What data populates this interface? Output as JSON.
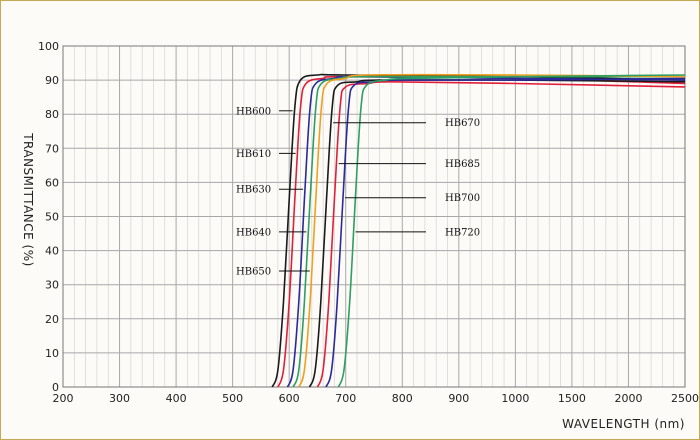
{
  "chart_data": {
    "type": "line",
    "title": "",
    "xlabel": "WAVELENGTH (nm)",
    "ylabel": "TRANSMITTANCE (%)",
    "ylim": [
      0,
      100
    ],
    "x_tick_labels": [
      "200",
      "300",
      "400",
      "500",
      "600",
      "700",
      "800",
      "900",
      "1000",
      "1500",
      "2000",
      "2500"
    ],
    "y_tick_labels": [
      "0",
      "10",
      "20",
      "30",
      "40",
      "50",
      "60",
      "70",
      "80",
      "90",
      "100"
    ],
    "x_scale_note": "non-uniform: 100 nm per division from 200 to 1000, 500 nm per division from 1000 to 2500",
    "grid": true,
    "legend": "labels with leader lines; HB600, HB610, HB630, HB640, HB650 on the left; HB670, HB685, HB700, HB720 on the right",
    "series": [
      {
        "name": "HB600",
        "color": "#1a1a1a",
        "points": [
          [
            570,
            0
          ],
          [
            580,
            5
          ],
          [
            590,
            25
          ],
          [
            600,
            55
          ],
          [
            610,
            82
          ],
          [
            620,
            90
          ],
          [
            650,
            91.5
          ],
          [
            700,
            91.5
          ],
          [
            1000,
            91
          ],
          [
            2500,
            90
          ]
        ]
      },
      {
        "name": "HB610",
        "color": "#e0203a",
        "points": [
          [
            580,
            0
          ],
          [
            590,
            5
          ],
          [
            600,
            25
          ],
          [
            610,
            55
          ],
          [
            620,
            82
          ],
          [
            630,
            89
          ],
          [
            660,
            90.5
          ],
          [
            700,
            91
          ],
          [
            1000,
            90.5
          ],
          [
            2500,
            89
          ]
        ]
      },
      {
        "name": "HB630",
        "color": "#2a2a9a",
        "points": [
          [
            597,
            0
          ],
          [
            607,
            5
          ],
          [
            617,
            25
          ],
          [
            627,
            55
          ],
          [
            637,
            82
          ],
          [
            647,
            89
          ],
          [
            680,
            90.5
          ],
          [
            720,
            91
          ],
          [
            1000,
            90.5
          ],
          [
            2500,
            90
          ]
        ]
      },
      {
        "name": "HB640",
        "color": "#2e9e62",
        "points": [
          [
            607,
            0
          ],
          [
            617,
            5
          ],
          [
            627,
            25
          ],
          [
            637,
            55
          ],
          [
            647,
            82
          ],
          [
            657,
            89
          ],
          [
            690,
            90.5
          ],
          [
            730,
            91
          ],
          [
            1000,
            91
          ],
          [
            2500,
            91
          ]
        ]
      },
      {
        "name": "HB650",
        "color": "#f0a020",
        "points": [
          [
            617,
            0
          ],
          [
            627,
            5
          ],
          [
            637,
            25
          ],
          [
            647,
            55
          ],
          [
            657,
            82
          ],
          [
            667,
            89
          ],
          [
            700,
            90.5
          ],
          [
            740,
            91.5
          ],
          [
            1000,
            91.5
          ],
          [
            2500,
            91
          ]
        ]
      },
      {
        "name": "HB670",
        "color": "#1a1a1a",
        "points": [
          [
            636,
            0
          ],
          [
            646,
            5
          ],
          [
            656,
            25
          ],
          [
            666,
            55
          ],
          [
            676,
            82
          ],
          [
            686,
            88.5
          ],
          [
            720,
            89.5
          ],
          [
            760,
            90
          ],
          [
            1000,
            90
          ],
          [
            2500,
            89.5
          ]
        ]
      },
      {
        "name": "HB685",
        "color": "#e0203a",
        "points": [
          [
            650,
            0
          ],
          [
            660,
            5
          ],
          [
            670,
            25
          ],
          [
            680,
            55
          ],
          [
            690,
            82
          ],
          [
            700,
            88
          ],
          [
            740,
            89
          ],
          [
            780,
            89.5
          ],
          [
            1000,
            89
          ],
          [
            2500,
            88
          ]
        ]
      },
      {
        "name": "HB700",
        "color": "#2a2a9a",
        "points": [
          [
            665,
            0
          ],
          [
            675,
            5
          ],
          [
            685,
            25
          ],
          [
            695,
            55
          ],
          [
            705,
            82
          ],
          [
            715,
            88.5
          ],
          [
            750,
            89.5
          ],
          [
            790,
            90
          ],
          [
            1000,
            90
          ],
          [
            2500,
            90.5
          ]
        ]
      },
      {
        "name": "HB720",
        "color": "#2e9e62",
        "points": [
          [
            687,
            0
          ],
          [
            697,
            5
          ],
          [
            707,
            25
          ],
          [
            717,
            55
          ],
          [
            727,
            82
          ],
          [
            737,
            88.5
          ],
          [
            770,
            90
          ],
          [
            810,
            90.5
          ],
          [
            1000,
            91
          ],
          [
            2500,
            91.5
          ]
        ]
      }
    ],
    "labels_left": [
      {
        "text": "HB600",
        "y": 81,
        "target_series": "HB600"
      },
      {
        "text": "HB610",
        "y": 68.5,
        "target_series": "HB610"
      },
      {
        "text": "HB630",
        "y": 58,
        "target_series": "HB630"
      },
      {
        "text": "HB640",
        "y": 45.5,
        "target_series": "HB640"
      },
      {
        "text": "HB650",
        "y": 34,
        "target_series": "HB650"
      }
    ],
    "labels_right": [
      {
        "text": "HB670",
        "y": 77.5,
        "target_series": "HB670"
      },
      {
        "text": "HB685",
        "y": 65.5,
        "target_series": "HB685"
      },
      {
        "text": "HB700",
        "y": 55.5,
        "target_series": "HB700"
      },
      {
        "text": "HB720",
        "y": 45.5,
        "target_series": "HB720"
      }
    ]
  }
}
